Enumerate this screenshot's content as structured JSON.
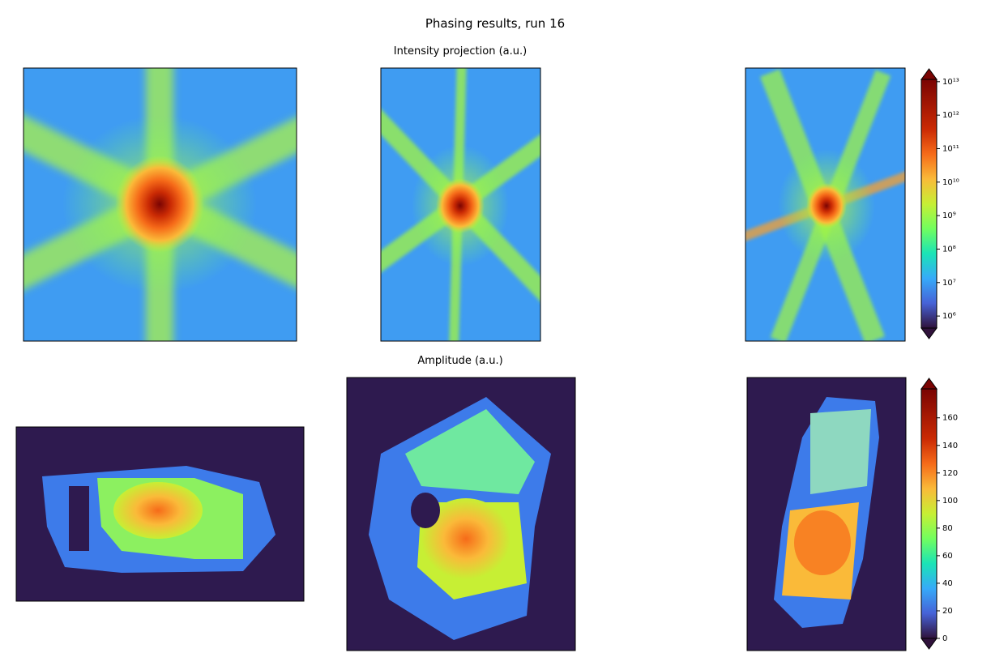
{
  "chart_data": {
    "type": "image-grid",
    "title": "Phasing results, run 16",
    "rows": [
      {
        "title": "Intensity projection (a.u.)",
        "colorbar": {
          "log": true,
          "ylim": [
            436000,
            11700000000000
          ],
          "yticks": [
            {
              "value": 1000000,
              "label": "10⁶"
            },
            {
              "value": 10000000,
              "label": "10⁷"
            },
            {
              "value": 100000000,
              "label": "10⁸"
            },
            {
              "value": 1000000000,
              "label": "10⁹"
            },
            {
              "value": 10000000000,
              "label": "10¹⁰"
            },
            {
              "value": 100000000000,
              "label": "10¹¹"
            },
            {
              "value": 1000000000000,
              "label": "10¹²"
            },
            {
              "value": 10000000000000,
              "label": "10¹³"
            }
          ]
        }
      },
      {
        "title": "Amplitude (a.u.)",
        "colorbar": {
          "log": false,
          "ylim": [
            0,
            181
          ],
          "yticks": [
            0,
            20,
            40,
            60,
            80,
            100,
            120,
            140,
            160
          ]
        }
      }
    ]
  }
}
